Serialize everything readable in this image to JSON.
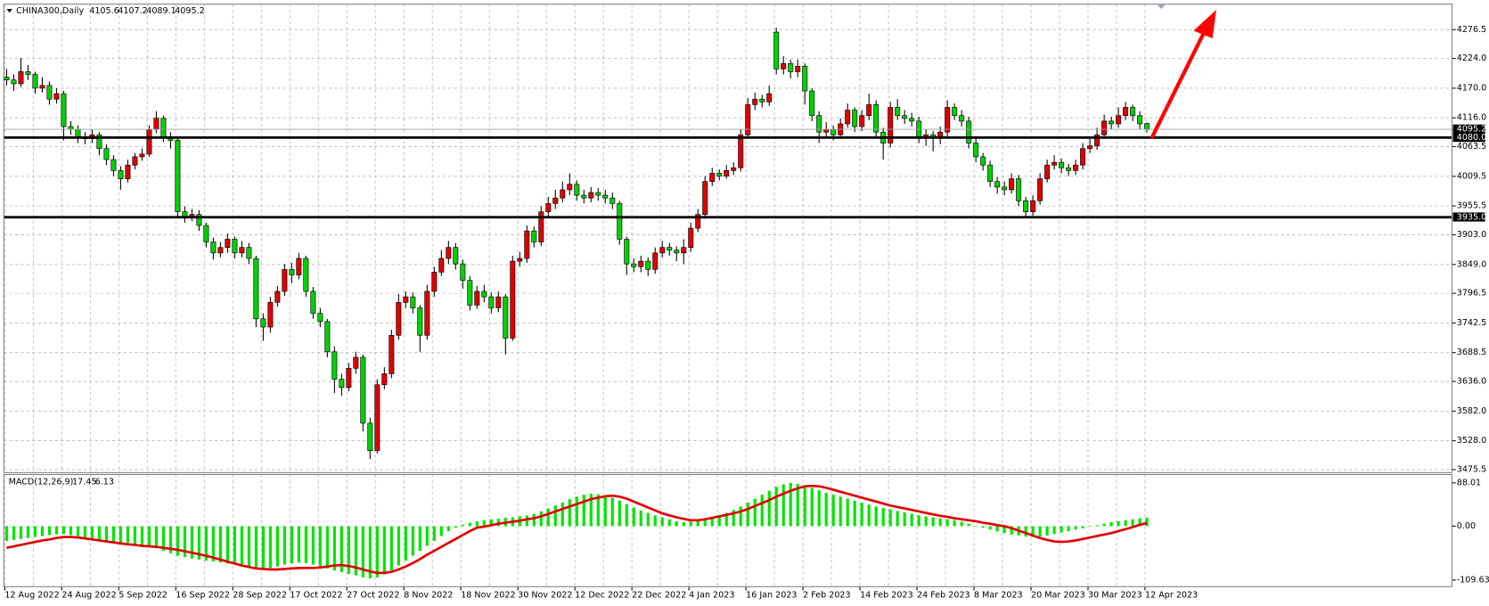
{
  "chart_data": {
    "type": "candlestick",
    "symbol": "CHINA300,Daily",
    "categories": [
      "12 Aug 2022",
      null,
      null,
      null,
      null,
      null,
      null,
      null,
      "24 Aug 2022",
      null,
      null,
      null,
      null,
      null,
      null,
      null,
      "5 Sep 2022",
      null,
      null,
      null,
      null,
      null,
      null,
      null,
      "16 Sep 2022",
      null,
      null,
      null,
      null,
      null,
      null,
      null,
      "28 Sep 2022",
      null,
      null,
      null,
      null,
      null,
      null,
      null,
      "17 Oct 2022",
      null,
      null,
      null,
      null,
      null,
      null,
      null,
      "27 Oct 2022",
      null,
      null,
      null,
      null,
      null,
      null,
      null,
      "8 Nov 2022",
      null,
      null,
      null,
      null,
      null,
      null,
      null,
      "18 Nov 2022",
      null,
      null,
      null,
      null,
      null,
      null,
      null,
      "30 Nov 2022",
      null,
      null,
      null,
      null,
      null,
      null,
      null,
      "12 Dec 2022",
      null,
      null,
      null,
      null,
      null,
      null,
      null,
      "22 Dec 2022",
      null,
      null,
      null,
      null,
      null,
      null,
      null,
      "4 Jan 2023",
      null,
      null,
      null,
      null,
      null,
      null,
      null,
      "16 Jan 2023",
      null,
      null,
      null,
      null,
      null,
      null,
      null,
      "2 Feb 2023",
      null,
      null,
      null,
      null,
      null,
      null,
      null,
      "14 Feb 2023",
      null,
      null,
      null,
      null,
      null,
      null,
      null,
      "24 Feb 2023",
      null,
      null,
      null,
      null,
      null,
      null,
      null,
      "8 Mar 2023",
      null,
      null,
      null,
      null,
      null,
      null,
      null,
      "20 Mar 2023",
      null,
      null,
      null,
      null,
      null,
      null,
      null,
      "30 Mar 2023",
      null,
      null,
      null,
      null,
      null,
      null,
      null,
      "12 Apr 2023"
    ],
    "open": [
      4190,
      4185,
      4178,
      4200,
      4195,
      4170,
      4175,
      4150,
      4160,
      4100,
      4095,
      4080,
      4078,
      4085,
      4060,
      4040,
      4020,
      4005,
      4030,
      4045,
      4050,
      4095,
      4115,
      4080,
      4075,
      3945,
      3935,
      3940,
      3920,
      3890,
      3870,
      3880,
      3895,
      3870,
      3880,
      3860,
      3750,
      3735,
      3780,
      3800,
      3840,
      3830,
      3860,
      3800,
      3760,
      3745,
      3690,
      3640,
      3625,
      3660,
      3680,
      3560,
      3510,
      3630,
      3650,
      3720,
      3780,
      3790,
      3770,
      3720,
      3800,
      3835,
      3860,
      3880,
      3850,
      3820,
      3775,
      3800,
      3790,
      3770,
      3790,
      3715,
      3855,
      3860,
      3910,
      3890,
      3945,
      3960,
      3970,
      3985,
      3995,
      3975,
      3970,
      3980,
      3975,
      3970,
      3960,
      3895,
      3850,
      3845,
      3855,
      3840,
      3870,
      3880,
      3875,
      3870,
      3880,
      3915,
      3940,
      4000,
      4015,
      4010,
      4020,
      4025,
      4085,
      4140,
      4150,
      4145,
      4272,
      4205,
      4215,
      4200,
      4210,
      4165,
      4120,
      4090,
      4095,
      4085,
      4105,
      4130,
      4100,
      4120,
      4140,
      4090,
      4070,
      4135,
      4120,
      4115,
      4110,
      4080,
      4085,
      4080,
      4090,
      4135,
      4120,
      4110,
      4070,
      4045,
      4030,
      4000,
      3990,
      3985,
      4005,
      3965,
      3945,
      3965,
      4005,
      4030,
      4035,
      4025,
      4020,
      4030,
      4060,
      4065,
      4085,
      4110,
      4105,
      4120,
      4135,
      4120,
      4105.6
    ],
    "high": [
      4205,
      4195,
      4225,
      4212,
      4200,
      4190,
      4182,
      4170,
      4165,
      4110,
      4102,
      4090,
      4095,
      4090,
      4068,
      4048,
      4028,
      4040,
      4052,
      4060,
      4102,
      4128,
      4120,
      4090,
      4080,
      3955,
      3950,
      3948,
      3925,
      3898,
      3890,
      3905,
      3900,
      3892,
      3888,
      3865,
      3760,
      3790,
      3810,
      3850,
      3852,
      3870,
      3865,
      3808,
      3770,
      3750,
      3700,
      3650,
      3670,
      3690,
      3685,
      3570,
      3640,
      3662,
      3730,
      3795,
      3800,
      3798,
      3775,
      3812,
      3845,
      3875,
      3892,
      3888,
      3858,
      3828,
      3810,
      3812,
      3798,
      3800,
      3795,
      3865,
      3872,
      3920,
      3918,
      3955,
      3972,
      3985,
      4000,
      4015,
      4002,
      3985,
      3990,
      3988,
      3985,
      3980,
      3965,
      3900,
      3860,
      3865,
      3862,
      3880,
      3892,
      3888,
      3882,
      3895,
      3925,
      3950,
      4010,
      4025,
      4022,
      4030,
      4035,
      4095,
      4152,
      4162,
      4158,
      4175,
      4280,
      4228,
      4222,
      4222,
      4215,
      4170,
      4128,
      4108,
      4102,
      4115,
      4142,
      4135,
      4130,
      4160,
      4148,
      4098,
      4145,
      4150,
      4130,
      4125,
      4118,
      4095,
      4092,
      4100,
      4148,
      4142,
      4130,
      4118,
      4078,
      4052,
      4038,
      4008,
      4000,
      4015,
      4012,
      3972,
      3975,
      4015,
      4040,
      4048,
      4042,
      4032,
      4040,
      4070,
      4078,
      4098,
      4122,
      4118,
      4135,
      4145,
      4140,
      4128,
      4107.2
    ],
    "low": [
      4175,
      4165,
      4172,
      4185,
      4160,
      4162,
      4140,
      4142,
      4075,
      4085,
      4070,
      4068,
      4070,
      4048,
      4030,
      4010,
      3985,
      3998,
      4022,
      4038,
      4045,
      4088,
      4072,
      4060,
      3935,
      3925,
      3928,
      3910,
      3880,
      3858,
      3862,
      3870,
      3860,
      3862,
      3850,
      3735,
      3710,
      3725,
      3772,
      3792,
      3815,
      3822,
      3790,
      3750,
      3735,
      3680,
      3615,
      3610,
      3618,
      3650,
      3545,
      3495,
      3505,
      3622,
      3642,
      3712,
      3770,
      3760,
      3690,
      3712,
      3790,
      3828,
      3850,
      3840,
      3805,
      3765,
      3768,
      3780,
      3760,
      3762,
      3685,
      3710,
      3845,
      3852,
      3880,
      3882,
      3935,
      3950,
      3962,
      3975,
      3965,
      3960,
      3962,
      3965,
      3960,
      3950,
      3885,
      3830,
      3835,
      3835,
      3828,
      3832,
      3862,
      3865,
      3855,
      3850,
      3872,
      3908,
      3932,
      3992,
      4002,
      4005,
      4012,
      4018,
      4078,
      4130,
      4135,
      4138,
      4195,
      4195,
      4188,
      4190,
      4140,
      4110,
      4070,
      4080,
      4075,
      4078,
      4098,
      4090,
      4092,
      4112,
      4080,
      4040,
      4062,
      4112,
      4105,
      4100,
      4070,
      4065,
      4055,
      4068,
      4082,
      4112,
      4100,
      4060,
      4035,
      4020,
      3990,
      3978,
      3975,
      3978,
      3955,
      3935,
      3938,
      3958,
      3998,
      4022,
      4015,
      4010,
      4012,
      4022,
      4052,
      4058,
      4078,
      4095,
      4098,
      4112,
      4110,
      4095,
      4089.1
    ],
    "close": [
      4185,
      4178,
      4200,
      4195,
      4170,
      4175,
      4150,
      4160,
      4100,
      4095,
      4080,
      4078,
      4085,
      4060,
      4040,
      4020,
      4005,
      4030,
      4045,
      4050,
      4095,
      4115,
      4080,
      4075,
      3945,
      3935,
      3940,
      3920,
      3890,
      3870,
      3880,
      3895,
      3870,
      3880,
      3860,
      3750,
      3735,
      3780,
      3800,
      3840,
      3830,
      3860,
      3800,
      3760,
      3745,
      3690,
      3640,
      3625,
      3660,
      3680,
      3560,
      3510,
      3630,
      3650,
      3720,
      3780,
      3790,
      3770,
      3720,
      3800,
      3835,
      3860,
      3880,
      3850,
      3820,
      3775,
      3800,
      3790,
      3770,
      3790,
      3715,
      3855,
      3860,
      3910,
      3890,
      3945,
      3960,
      3970,
      3985,
      3995,
      3975,
      3970,
      3980,
      3975,
      3970,
      3960,
      3895,
      3850,
      3845,
      3855,
      3840,
      3870,
      3880,
      3875,
      3870,
      3880,
      3915,
      3940,
      4000,
      4015,
      4010,
      4020,
      4025,
      4085,
      4140,
      4150,
      4145,
      4160,
      4205,
      4215,
      4200,
      4210,
      4165,
      4120,
      4090,
      4095,
      4085,
      4105,
      4130,
      4100,
      4120,
      4140,
      4090,
      4070,
      4135,
      4120,
      4115,
      4110,
      4080,
      4085,
      4080,
      4090,
      4135,
      4120,
      4110,
      4070,
      4045,
      4030,
      4000,
      3990,
      3985,
      4005,
      3965,
      3945,
      3965,
      4005,
      4030,
      4035,
      4025,
      4020,
      4030,
      4060,
      4065,
      4085,
      4110,
      4105,
      4120,
      4135,
      4120,
      4105,
      4095.2
    ],
    "ylim": [
      3470,
      4323
    ],
    "yticks": [
      4276.5,
      {
        "value": 4224,
        "label": "4224.0"
      },
      {
        "value": 4170,
        "label": "4170.0"
      },
      {
        "value": 4116,
        "label": "4116.0"
      },
      4063.5,
      4009.5,
      3955.5,
      {
        "value": 3903,
        "label": "3903.0"
      },
      {
        "value": 3849,
        "label": "3849.0"
      },
      3796.5,
      3742.5,
      3688.5,
      {
        "value": 3636,
        "label": "3636.0"
      },
      {
        "value": 3582,
        "label": "3582.0"
      },
      {
        "value": 3528,
        "label": "3528.0"
      },
      3475.5
    ],
    "grid": true,
    "up_color": "#e00000",
    "down_color": "#00d200",
    "hlines": [
      {
        "value": 4080,
        "label": "4080.0"
      },
      {
        "value": 3935,
        "label": "3935.0"
      }
    ],
    "macd": {
      "type": "macd",
      "title": "MACD(12,26,9)",
      "macd": [
        -30,
        -28,
        -26,
        -24,
        -22,
        -20,
        -18,
        -17,
        -16,
        -18,
        -20,
        -23,
        -26,
        -29,
        -31,
        -33,
        -35,
        -34,
        -36,
        -38,
        -40,
        -45,
        -50,
        -55,
        -60,
        -63,
        -66,
        -68,
        -70,
        -72,
        -74,
        -76,
        -78,
        -80,
        -82,
        -84,
        -86,
        -85,
        -82,
        -78,
        -76,
        -74,
        -75,
        -78,
        -82,
        -86,
        -90,
        -93,
        -97,
        -100,
        -104,
        -106,
        -104,
        -98,
        -90,
        -80,
        -70,
        -60,
        -50,
        -40,
        -30,
        -20,
        -10,
        -3,
        3,
        7,
        10,
        12,
        14,
        15,
        17,
        18,
        20,
        22,
        25,
        30,
        36,
        42,
        48,
        55,
        60,
        64,
        66,
        65,
        63,
        58,
        52,
        45,
        38,
        32,
        27,
        22,
        18,
        14,
        10,
        8,
        9,
        12,
        15,
        18,
        22,
        27,
        33,
        40,
        48,
        56,
        64,
        72,
        80,
        85,
        88,
        86,
        82,
        78,
        73,
        68,
        64,
        60,
        56,
        52,
        48,
        44,
        40,
        37,
        34,
        31,
        28,
        25,
        22,
        20,
        18,
        16,
        14,
        12,
        9,
        5,
        1,
        -3,
        -7,
        -11,
        -14,
        -17,
        -19,
        -21,
        -22,
        -21,
        -19,
        -16,
        -13,
        -10,
        -7,
        -4,
        -1,
        2,
        5,
        8,
        10,
        12,
        14,
        16,
        17.45
      ],
      "signal": [
        -44,
        -41,
        -38,
        -35,
        -32,
        -29,
        -27,
        -24,
        -22,
        -22,
        -23,
        -25,
        -27,
        -29,
        -31,
        -33,
        -35,
        -37,
        -38,
        -40,
        -41,
        -42,
        -44,
        -46,
        -48,
        -51,
        -54,
        -57,
        -60,
        -64,
        -68,
        -72,
        -76,
        -80,
        -83,
        -86,
        -87,
        -88,
        -88,
        -87,
        -86,
        -85,
        -85,
        -85,
        -84,
        -82,
        -80,
        -79,
        -81,
        -84,
        -88,
        -92,
        -95,
        -95,
        -93,
        -88,
        -82,
        -75,
        -67,
        -58,
        -50,
        -42,
        -34,
        -26,
        -18,
        -10,
        -3,
        -1,
        2,
        5,
        7,
        9,
        11,
        14,
        16,
        20,
        25,
        30,
        35,
        40,
        45,
        50,
        55,
        58,
        61,
        62,
        60,
        56,
        50,
        44,
        38,
        32,
        26,
        22,
        18,
        15,
        12,
        12,
        14,
        17,
        20,
        23,
        26,
        30,
        35,
        41,
        47,
        53,
        60,
        66,
        72,
        77,
        81,
        82,
        81,
        78,
        74,
        70,
        66,
        62,
        58,
        54,
        50,
        46,
        42,
        39,
        36,
        33,
        30,
        27,
        24,
        21,
        19,
        16,
        14,
        12,
        10,
        7,
        5,
        2,
        0,
        -4,
        -9,
        -14,
        -19,
        -24,
        -28,
        -31,
        -32,
        -31,
        -29,
        -26,
        -23,
        -20,
        -17,
        -14,
        -10,
        -6,
        -2,
        3,
        6.13
      ],
      "ylim": [
        -123,
        105
      ],
      "yticks": [
        88.01,
        {
          "value": 0,
          "label": "0.00"
        },
        -109.63
      ],
      "histogram_color": "#00e600",
      "signal_color": "#e00000"
    }
  }
}
